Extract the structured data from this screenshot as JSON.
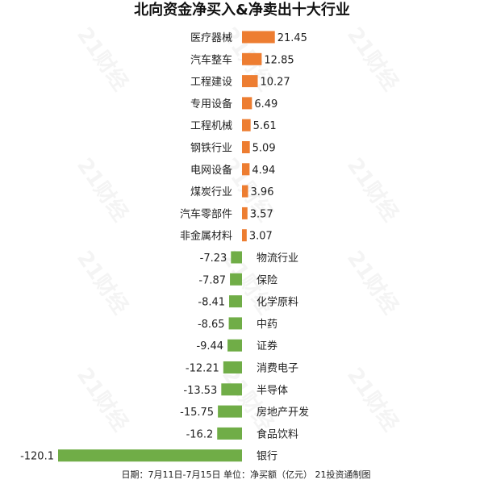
{
  "chart_data": {
    "type": "bar",
    "orientation": "horizontal",
    "title": "北向资金净买入&净卖出十大行业",
    "categories": [
      "医疗器械",
      "汽车整车",
      "工程建设",
      "专用设备",
      "工程机械",
      "钢铁行业",
      "电网设备",
      "煤炭行业",
      "汽车零部件",
      "非金属材料",
      "物流行业",
      "保险",
      "化学原料",
      "中药",
      "证券",
      "消费电子",
      "半导体",
      "房地产开发",
      "食品饮料",
      "银行"
    ],
    "values": [
      21.45,
      12.85,
      10.27,
      6.49,
      5.61,
      5.09,
      4.94,
      3.96,
      3.57,
      3.07,
      -7.23,
      -7.87,
      -8.41,
      -8.65,
      -9.44,
      -12.21,
      -13.53,
      -15.75,
      -16.2,
      -120.1
    ],
    "value_labels": [
      "21.45",
      "12.85",
      "10.27",
      "6.49",
      "5.61",
      "5.09",
      "4.94",
      "3.96",
      "3.57",
      "3.07",
      "-7.23",
      "-7.87",
      "-8.41",
      "-8.65",
      "-9.44",
      "-12.21",
      "-13.53",
      "-15.75",
      "-16.2",
      "-120.1"
    ],
    "colors": {
      "positive": "#ED7D31",
      "negative": "#70AD47"
    },
    "footer": "日期：7月11日-7月15日 单位：净买额（亿元） 21投资通制图",
    "legend": "none",
    "grid": false
  },
  "watermark": {
    "text": "21财经"
  }
}
